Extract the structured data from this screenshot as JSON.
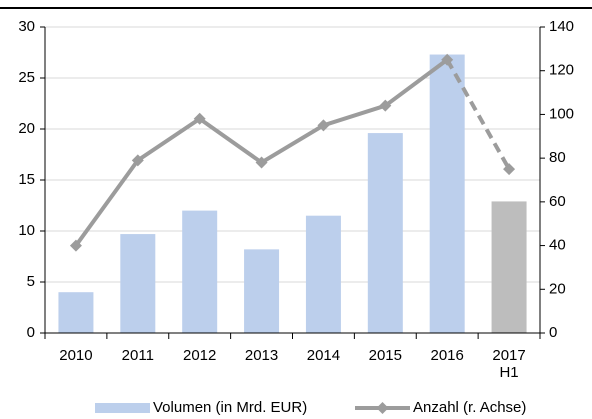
{
  "chart_data": {
    "type": "combo",
    "categories": [
      "2010",
      "2011",
      "2012",
      "2013",
      "2014",
      "2015",
      "2016",
      "2017 H1"
    ],
    "series": [
      {
        "name": "Volumen (in Mrd. EUR)",
        "type": "bar",
        "color": "#bccfec",
        "colors": [
          "#bccfec",
          "#bccfec",
          "#bccfec",
          "#bccfec",
          "#bccfec",
          "#bccfec",
          "#bccfec",
          "#bdbdbd"
        ],
        "values": [
          4.0,
          9.7,
          12.0,
          8.2,
          11.5,
          19.6,
          27.3,
          12.9
        ]
      },
      {
        "name": "Anzahl (r. Achse)",
        "type": "line",
        "axis": "y2",
        "color": "#9c9c9c",
        "dashed_from": 6,
        "values": [
          40,
          79,
          98,
          78,
          95,
          104,
          125,
          75
        ]
      }
    ],
    "ylim": [
      0,
      30
    ],
    "yticks": [
      0,
      5,
      10,
      15,
      20,
      25,
      30
    ],
    "y2lim": [
      0,
      140
    ],
    "y2ticks": [
      0,
      20,
      40,
      60,
      80,
      100,
      120,
      140
    ],
    "grid": true,
    "legend": "bottom"
  }
}
